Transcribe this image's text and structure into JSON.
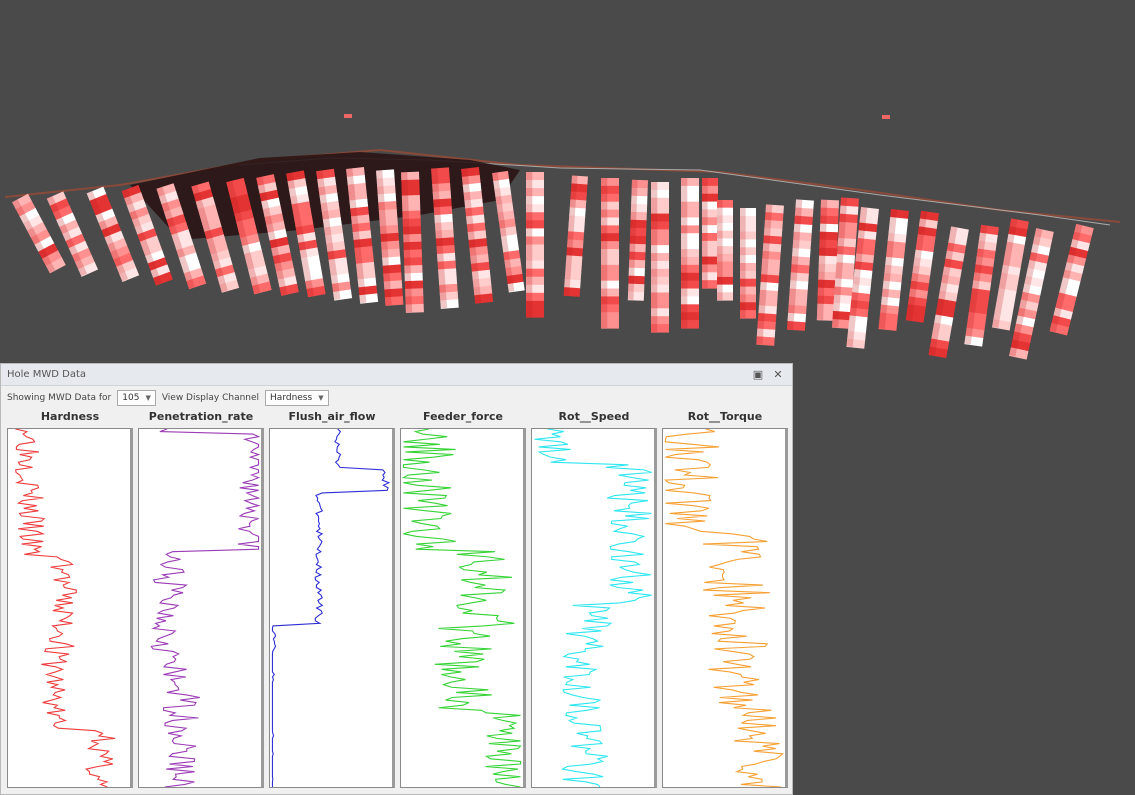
{
  "panel": {
    "title": "Hole MWD Data",
    "pin_icon": "pin-icon",
    "close_icon": "close-icon",
    "showing_label": "Showing MWD Data for",
    "hole_value": "105",
    "channel_label": "View Display Channel",
    "channel_value": "Hardness"
  },
  "tracks": [
    {
      "name": "Hardness",
      "color": "#ee3b3b"
    },
    {
      "name": "Penetration_rate",
      "color": "#9b3bb5"
    },
    {
      "name": "Flush_air_flow",
      "color": "#2f2fd6"
    },
    {
      "name": "Feeder_force",
      "color": "#36d336"
    },
    {
      "name": "Rot__Speed",
      "color": "#2ee6f0"
    },
    {
      "name": "Rot__Torque",
      "color": "#f5a033"
    }
  ],
  "colors": {
    "background": "#4a4a4a",
    "hole_color": "#e33333"
  }
}
